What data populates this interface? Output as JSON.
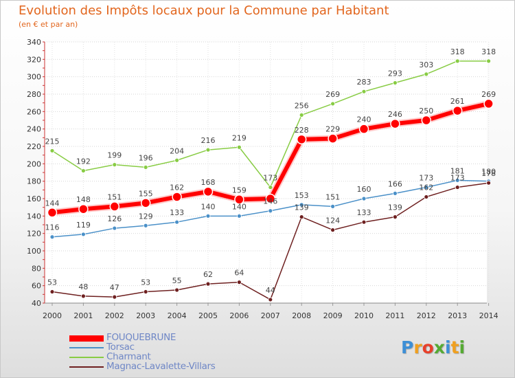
{
  "title": "Evolution des Impôts locaux pour la Commune par Habitant",
  "subtitle": "(en € et par an)",
  "chart_data": {
    "type": "line",
    "title": "Evolution des Impôts locaux pour la Commune par Habitant",
    "subtitle": "(en € et par an)",
    "x": [
      "2000",
      "2001",
      "2002",
      "2003",
      "2004",
      "2005",
      "2006",
      "2007",
      "2008",
      "2009",
      "2010",
      "2011",
      "2012",
      "2013",
      "2014"
    ],
    "ylim": [
      40,
      340
    ],
    "yticks": [
      40,
      60,
      80,
      100,
      120,
      140,
      160,
      180,
      200,
      220,
      240,
      260,
      280,
      300,
      320,
      340
    ],
    "grid": true,
    "legend_position": "bottom-left",
    "series": [
      {
        "name": "FOUQUEBRUNE",
        "color": "#ff0000",
        "values": [
          144,
          148,
          151,
          155,
          162,
          168,
          159,
          160,
          228,
          229,
          240,
          246,
          250,
          261,
          269
        ]
      },
      {
        "name": "Torsac",
        "color": "#4a90c8",
        "values": [
          116,
          119,
          126,
          129,
          133,
          140,
          140,
          146,
          153,
          151,
          160,
          166,
          173,
          181,
          180
        ]
      },
      {
        "name": "Charmant",
        "color": "#88cc44",
        "values": [
          215,
          192,
          199,
          196,
          204,
          216,
          219,
          173,
          256,
          269,
          283,
          293,
          303,
          318,
          318
        ]
      },
      {
        "name": "Magnac-Lavalette-Villars",
        "color": "#6e2020",
        "values": [
          53,
          48,
          47,
          53,
          55,
          62,
          64,
          44,
          139,
          124,
          133,
          139,
          162,
          173,
          178
        ]
      }
    ],
    "data_labels": {
      "FOUQUEBRUNE": [
        "144",
        "148",
        "151",
        "155",
        "162",
        "168",
        "159",
        "",
        "228",
        "229",
        "240",
        "246",
        "250",
        "261",
        "269"
      ],
      "Torsac": [
        "116",
        "119",
        "126",
        "129",
        "133",
        "140",
        "140",
        "146",
        "153",
        "151",
        "160",
        "166",
        "173",
        "181",
        "180"
      ],
      "Charmant": [
        "215",
        "192",
        "199",
        "196",
        "204",
        "216",
        "219",
        "173",
        "256",
        "269",
        "283",
        "293",
        "303",
        "318",
        "318"
      ],
      "Magnac-Lavalette-Villars": [
        "53",
        "48",
        "47",
        "53",
        "55",
        "62",
        "64",
        "44",
        "139",
        "124",
        "133",
        "139",
        "162",
        "173",
        "178"
      ]
    }
  },
  "logo": {
    "letters": [
      "P",
      "r",
      "o",
      "x",
      "i",
      "t",
      "i"
    ],
    "colors": [
      "#3d8fd6",
      "#f0a020",
      "#e8402a",
      "#55aa33",
      "#3d8fd6",
      "#f0a020",
      "#55aa33"
    ]
  }
}
